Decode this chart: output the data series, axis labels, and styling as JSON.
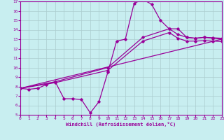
{
  "xlabel": "Windchill (Refroidissement éolien,°C)",
  "xlim": [
    0,
    23
  ],
  "ylim": [
    5,
    17
  ],
  "xticks": [
    0,
    1,
    2,
    3,
    4,
    5,
    6,
    7,
    8,
    9,
    10,
    11,
    12,
    13,
    14,
    15,
    16,
    17,
    18,
    19,
    20,
    21,
    22,
    23
  ],
  "yticks": [
    5,
    6,
    7,
    8,
    9,
    10,
    11,
    12,
    13,
    14,
    15,
    16,
    17
  ],
  "bg_color": "#c8eef0",
  "line_color": "#990099",
  "grid_color": "#aaccce",
  "line1_x": [
    0,
    1,
    2,
    3,
    4,
    5,
    6,
    7,
    8,
    9,
    10,
    11,
    12,
    13,
    14,
    15,
    16,
    17,
    18,
    19,
    20,
    21,
    22,
    23
  ],
  "line1_y": [
    7.8,
    7.7,
    7.8,
    8.2,
    8.5,
    6.7,
    6.7,
    6.6,
    5.2,
    6.4,
    9.5,
    12.8,
    13.0,
    16.8,
    17.2,
    16.7,
    15.0,
    14.1,
    14.1,
    13.2,
    13.1,
    13.2,
    13.1,
    13.0
  ],
  "line2_x": [
    0,
    23
  ],
  "line2_y": [
    7.8,
    13.0
  ],
  "line3_x": [
    0,
    4,
    10,
    14,
    17,
    18,
    19,
    20,
    21,
    22,
    23
  ],
  "line3_y": [
    7.8,
    8.5,
    10.0,
    13.2,
    14.1,
    13.5,
    13.2,
    13.1,
    13.2,
    13.15,
    13.1
  ],
  "line4_x": [
    0,
    4,
    10,
    14,
    17,
    18,
    19,
    20,
    21,
    22,
    23
  ],
  "line4_y": [
    7.8,
    8.4,
    9.7,
    12.8,
    13.7,
    13.1,
    12.8,
    12.8,
    12.85,
    12.8,
    12.75
  ]
}
